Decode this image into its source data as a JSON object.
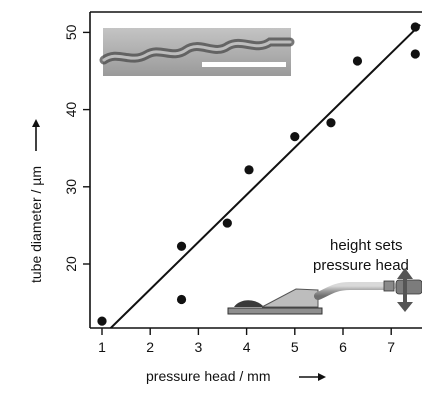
{
  "chart_data": {
    "type": "scatter",
    "xlabel": "pressure head / mm",
    "ylabel": "tube diameter / µm",
    "xlim": [
      0.8,
      7.6
    ],
    "ylim": [
      11,
      52
    ],
    "xticks": [
      1,
      2,
      3,
      4,
      5,
      6,
      7
    ],
    "yticks": [
      20,
      30,
      40,
      50
    ],
    "grid": false,
    "points": [
      {
        "x": 1.0,
        "y": 12.6
      },
      {
        "x": 2.65,
        "y": 22.3
      },
      {
        "x": 2.65,
        "y": 15.4
      },
      {
        "x": 3.6,
        "y": 25.3
      },
      {
        "x": 4.05,
        "y": 32.2
      },
      {
        "x": 5.0,
        "y": 36.5
      },
      {
        "x": 5.75,
        "y": 38.3
      },
      {
        "x": 6.3,
        "y": 46.3
      },
      {
        "x": 7.5,
        "y": 50.7
      },
      {
        "x": 7.5,
        "y": 47.2
      }
    ],
    "fit_line": {
      "x": [
        1.0,
        7.6
      ],
      "y": [
        10.6,
        51.0
      ]
    },
    "annotations": {
      "setup_line1": "height sets",
      "setup_line2": "pressure head"
    }
  }
}
